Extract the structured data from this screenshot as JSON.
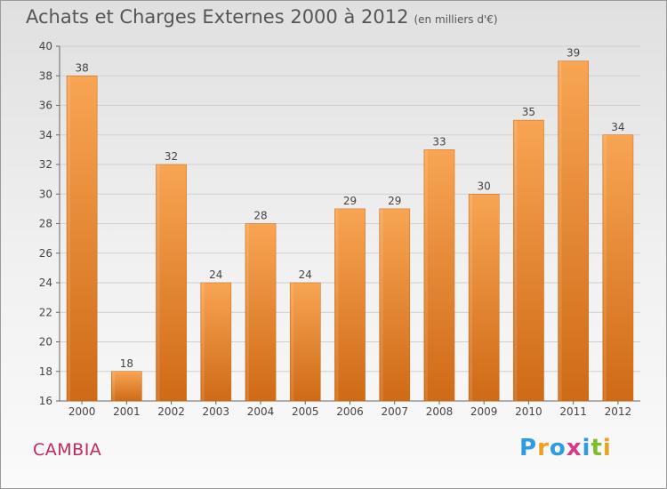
{
  "title": "Achats et Charges Externes 2000 à 2012",
  "unit": "(en milliers d'€)",
  "commune": "CAMBIA",
  "logo": {
    "text": "Proxiti",
    "letters": [
      "P",
      "r",
      "o",
      "x",
      "i",
      "t",
      "i"
    ],
    "colors": [
      "#2f9be0",
      "#f0a020",
      "#2f9be0",
      "#d63a8a",
      "#2f9be0",
      "#7cbf2a",
      "#f0a020"
    ]
  },
  "colors": {
    "bar_top": "#f8a553",
    "bar_bottom": "#cf6a16",
    "commune": "#c8285a"
  },
  "chart_data": {
    "type": "bar",
    "categories": [
      "2000",
      "2001",
      "2002",
      "2003",
      "2004",
      "2005",
      "2006",
      "2007",
      "2008",
      "2009",
      "2010",
      "2011",
      "2012"
    ],
    "values": [
      38,
      18,
      32,
      24,
      28,
      24,
      29,
      29,
      33,
      30,
      35,
      39,
      34
    ],
    "ylim": [
      16,
      40
    ],
    "yticks": [
      16,
      18,
      20,
      22,
      24,
      26,
      28,
      30,
      32,
      34,
      36,
      38,
      40
    ],
    "grid": true,
    "legend": "none"
  }
}
